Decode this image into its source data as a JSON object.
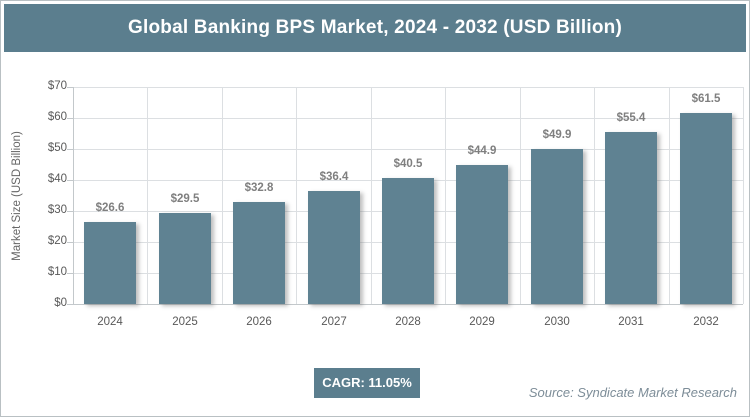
{
  "header": {
    "title": "Global Banking BPS Market, 2024 - 2032 (USD Billion)"
  },
  "chart_data": {
    "type": "bar",
    "title": "Global Banking BPS Market, 2024 - 2032 (USD Billion)",
    "categories": [
      "2024",
      "2025",
      "2026",
      "2027",
      "2028",
      "2029",
      "2030",
      "2031",
      "2032"
    ],
    "values": [
      26.6,
      29.5,
      32.8,
      36.4,
      40.5,
      44.9,
      49.9,
      55.4,
      61.5
    ],
    "xlabel": "",
    "ylabel": "Market Size (USD Billion)",
    "ylim": [
      0,
      70
    ],
    "ytick_step": 10,
    "ytick_prefix": "$",
    "value_prefix": "$",
    "grid": true,
    "legend": false,
    "bar_color": "#5f8292"
  },
  "footer": {
    "cagr_label": "CAGR: 11.05%",
    "source": "Source: Syndicate Market Research"
  },
  "colors": {
    "header_bg": "#5b7e8e",
    "bar": "#5f8292",
    "grid": "#dcdfe2",
    "axis": "#c3c8cb",
    "tick_text": "#595959",
    "value_text": "#7f7f7f",
    "source_text": "#7d8d98"
  }
}
